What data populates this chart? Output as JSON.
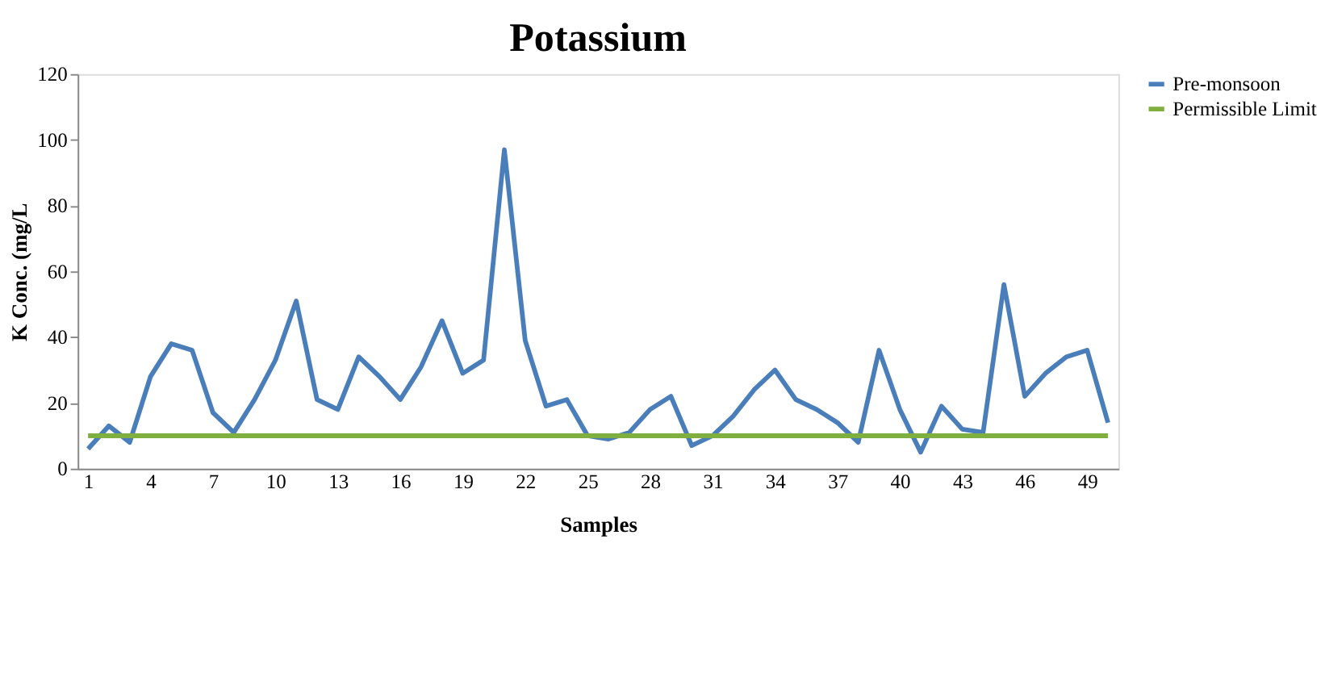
{
  "chart_data": {
    "type": "line",
    "title": "Potassium",
    "xlabel": "Samples",
    "ylabel": "K Conc. (mg/L",
    "categories": [
      "1",
      null,
      null,
      "4",
      null,
      null,
      "7",
      null,
      null,
      "10",
      null,
      null,
      "13",
      null,
      null,
      "16",
      null,
      null,
      "19",
      null,
      null,
      "22",
      null,
      null,
      "25",
      null,
      null,
      "28",
      null,
      null,
      "31",
      null,
      null,
      "34",
      null,
      null,
      "37",
      null,
      null,
      "40",
      null,
      null,
      "43",
      null,
      null,
      "46",
      null,
      null,
      "49",
      null
    ],
    "series": [
      {
        "name": "Pre-monsoon",
        "color": "#4a7ebb",
        "values": [
          6,
          13,
          8,
          28,
          38,
          36,
          17,
          11,
          21,
          33,
          51,
          21,
          18,
          34,
          28,
          21,
          31,
          45,
          29,
          33,
          97,
          39,
          19,
          21,
          10,
          9,
          11,
          18,
          22,
          7,
          10,
          16,
          24,
          30,
          21,
          18,
          14,
          8,
          36,
          18,
          5,
          19,
          12,
          11,
          56,
          22,
          29,
          34,
          36,
          14
        ]
      },
      {
        "name": "Permissible Limit",
        "color": "#7faf3f",
        "values": [
          10,
          10,
          10,
          10,
          10,
          10,
          10,
          10,
          10,
          10,
          10,
          10,
          10,
          10,
          10,
          10,
          10,
          10,
          10,
          10,
          10,
          10,
          10,
          10,
          10,
          10,
          10,
          10,
          10,
          10,
          10,
          10,
          10,
          10,
          10,
          10,
          10,
          10,
          10,
          10,
          10,
          10,
          10,
          10,
          10,
          10,
          10,
          10,
          10,
          10
        ]
      }
    ],
    "ylim": [
      0,
      120
    ],
    "yticks": [
      0,
      20,
      40,
      60,
      80,
      100,
      120
    ],
    "grid": false,
    "legend": "right",
    "marker": "none",
    "line_style": "solid"
  }
}
